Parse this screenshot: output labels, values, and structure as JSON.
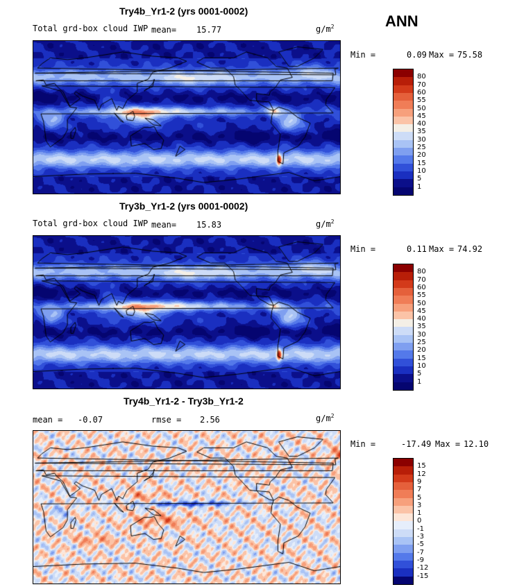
{
  "season": "ANN",
  "units": {
    "base": "g/m",
    "exp": "2"
  },
  "panels": [
    {
      "title": "Try4b_Yr1-2 (yrs 0001-0002)",
      "variable": "Total grd-box cloud IWP",
      "mean_label": "mean=",
      "mean": "15.77",
      "min_label": "Min =",
      "min": "0.09",
      "max_label": "Max =",
      "max": "75.58"
    },
    {
      "title": "Try3b_Yr1-2 (yrs 0001-0002)",
      "variable": "Total grd-box cloud IWP",
      "mean_label": "mean=",
      "mean": "15.83",
      "min_label": "Min =",
      "min": "0.11",
      "max_label": "Max =",
      "max": "74.92"
    },
    {
      "title": "Try4b_Yr1-2 - Try3b_Yr1-2",
      "mean_label": "mean =",
      "mean": "-0.07",
      "rmse_label": "rmse =",
      "rmse": "2.56",
      "min_label": "Min =",
      "min": "-17.49",
      "max_label": "Max =",
      "max": "12.10"
    }
  ],
  "colorbars": {
    "field": {
      "levels": [
        "80",
        "70",
        "60",
        "55",
        "50",
        "45",
        "40",
        "35",
        "30",
        "25",
        "20",
        "15",
        "10",
        "5",
        "1"
      ],
      "colors": [
        "#8b0000",
        "#b81e08",
        "#d33a1a",
        "#e5603b",
        "#f07d57",
        "#f7a07c",
        "#fbc3a7",
        "#f4efe6",
        "#cddcf7",
        "#a9c3f5",
        "#7f9ff0",
        "#5479ea",
        "#3150d9",
        "#1a2fc0",
        "#0b0f8a",
        "#050570"
      ]
    },
    "diff": {
      "levels": [
        "15",
        "12",
        "9",
        "7",
        "5",
        "3",
        "1",
        "0",
        "-1",
        "-3",
        "-5",
        "-7",
        "-9",
        "-12",
        "-15"
      ],
      "colors": [
        "#8b0000",
        "#b81e08",
        "#d33a1a",
        "#e5603b",
        "#f07d57",
        "#f7a07c",
        "#fbc3a7",
        "#fde6d8",
        "#e6eefb",
        "#cddcf7",
        "#a9c3f5",
        "#7f9ff0",
        "#5479ea",
        "#3150d9",
        "#1a2fc0",
        "#050570"
      ]
    }
  },
  "chart_data": [
    {
      "type": "heatmap",
      "title": "Try4b_Yr1-2 (yrs 0001-0002)",
      "variable": "Total grd-box cloud IWP",
      "units": "g/m2",
      "mean": 15.77,
      "min": 0.09,
      "max": 75.58,
      "levels": [
        1,
        5,
        10,
        15,
        20,
        25,
        30,
        35,
        40,
        45,
        50,
        55,
        60,
        70,
        80
      ]
    },
    {
      "type": "heatmap",
      "title": "Try3b_Yr1-2 (yrs 0001-0002)",
      "variable": "Total grd-box cloud IWP",
      "units": "g/m2",
      "mean": 15.83,
      "min": 0.11,
      "max": 74.92,
      "levels": [
        1,
        5,
        10,
        15,
        20,
        25,
        30,
        35,
        40,
        45,
        50,
        55,
        60,
        70,
        80
      ]
    },
    {
      "type": "heatmap",
      "title": "Try4b_Yr1-2 - Try3b_Yr1-2",
      "units": "g/m2",
      "mean": -0.07,
      "rmse": 2.56,
      "min": -17.49,
      "max": 12.1,
      "levels": [
        -15,
        -12,
        -9,
        -7,
        -5,
        -3,
        -1,
        0,
        1,
        3,
        5,
        7,
        9,
        12,
        15
      ]
    }
  ]
}
